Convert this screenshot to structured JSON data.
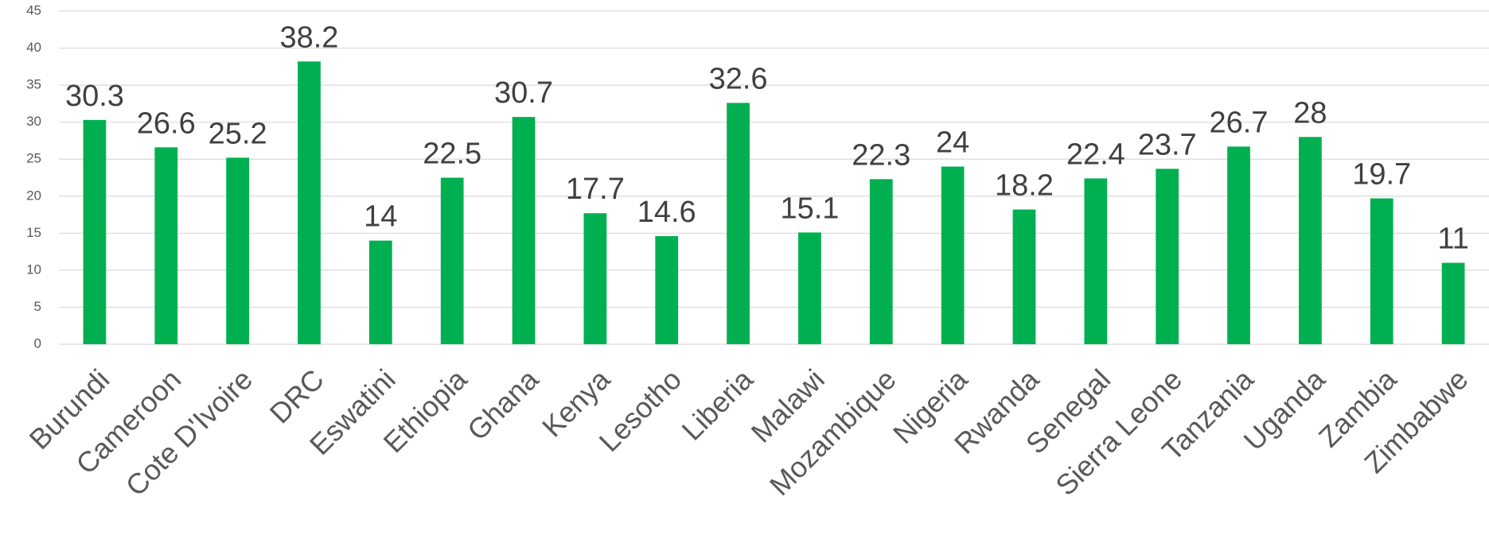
{
  "chart_data": {
    "type": "bar",
    "categories": [
      "Burundi",
      "Cameroon",
      "Cote D'Ivoire",
      "DRC",
      "Eswatini",
      "Ethiopia",
      "Ghana",
      "Kenya",
      "Lesotho",
      "Liberia",
      "Malawi",
      "Mozambique",
      "Nigeria",
      "Rwanda",
      "Senegal",
      "Sierra Leone",
      "Tanzania",
      "Uganda",
      "Zambia",
      "Zimbabwe"
    ],
    "values": [
      30.3,
      26.6,
      25.2,
      38.2,
      14,
      22.5,
      30.7,
      17.7,
      14.6,
      32.6,
      15.1,
      22.3,
      24,
      18.2,
      22.4,
      23.7,
      26.7,
      28,
      19.7,
      11
    ],
    "color": "#00b050",
    "ylim": [
      0,
      45
    ],
    "yticks": [
      0,
      5,
      10,
      15,
      20,
      25,
      30,
      35,
      40,
      45
    ],
    "grid": true
  }
}
